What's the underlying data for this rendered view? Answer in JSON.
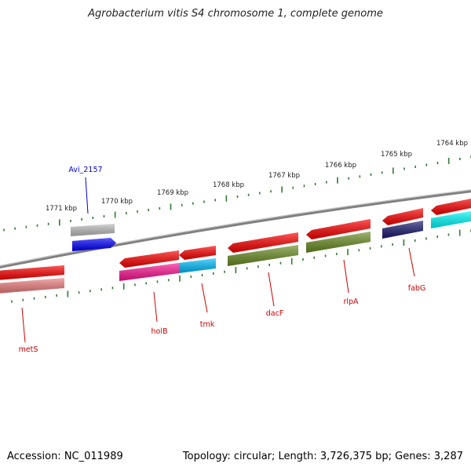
{
  "title": "Agrobacterium vitis S4 chromosome 1, complete genome",
  "accession_label": "Accession: NC_011989",
  "summary_label": "Topology: circular; Length: 3,726,375 bp; Genes: 3,287",
  "scale_labels": [
    "1771 kbp",
    "1770 kbp",
    "1769 kbp",
    "1768 kbp",
    "1767 kbp",
    "1766 kbp",
    "1765 kbp",
    "1764 kbp"
  ],
  "genes": [
    {
      "name": "metS",
      "strand": "reverse",
      "color": "#ff0000",
      "function_color": "#f08080"
    },
    {
      "name": "holB",
      "strand": "reverse",
      "color": "#ff0000",
      "function_color": "#ff1493"
    },
    {
      "name": "tmk",
      "strand": "reverse",
      "color": "#ff0000",
      "function_color": "#00bfff"
    },
    {
      "name": "dacF",
      "strand": "reverse",
      "color": "#ff0000",
      "function_color": "#6b8e23"
    },
    {
      "name": "rlpA",
      "strand": "reverse",
      "color": "#ff0000",
      "function_color": "#6b8e23"
    },
    {
      "name": "fabG",
      "strand": "reverse",
      "color": "#ff0000",
      "function_color": "#191970"
    },
    {
      "name": "",
      "strand": "reverse",
      "color": "#ff0000",
      "function_color": "#00ffff"
    },
    {
      "name": "Avi_2157",
      "strand": "forward",
      "color": "#0000ff",
      "function_color": "#c0c0c0"
    }
  ],
  "colors": {
    "backbone": "#808080",
    "tick": "#2e7d32",
    "label_red": "#cc0000",
    "label_blue": "#0000cc"
  }
}
